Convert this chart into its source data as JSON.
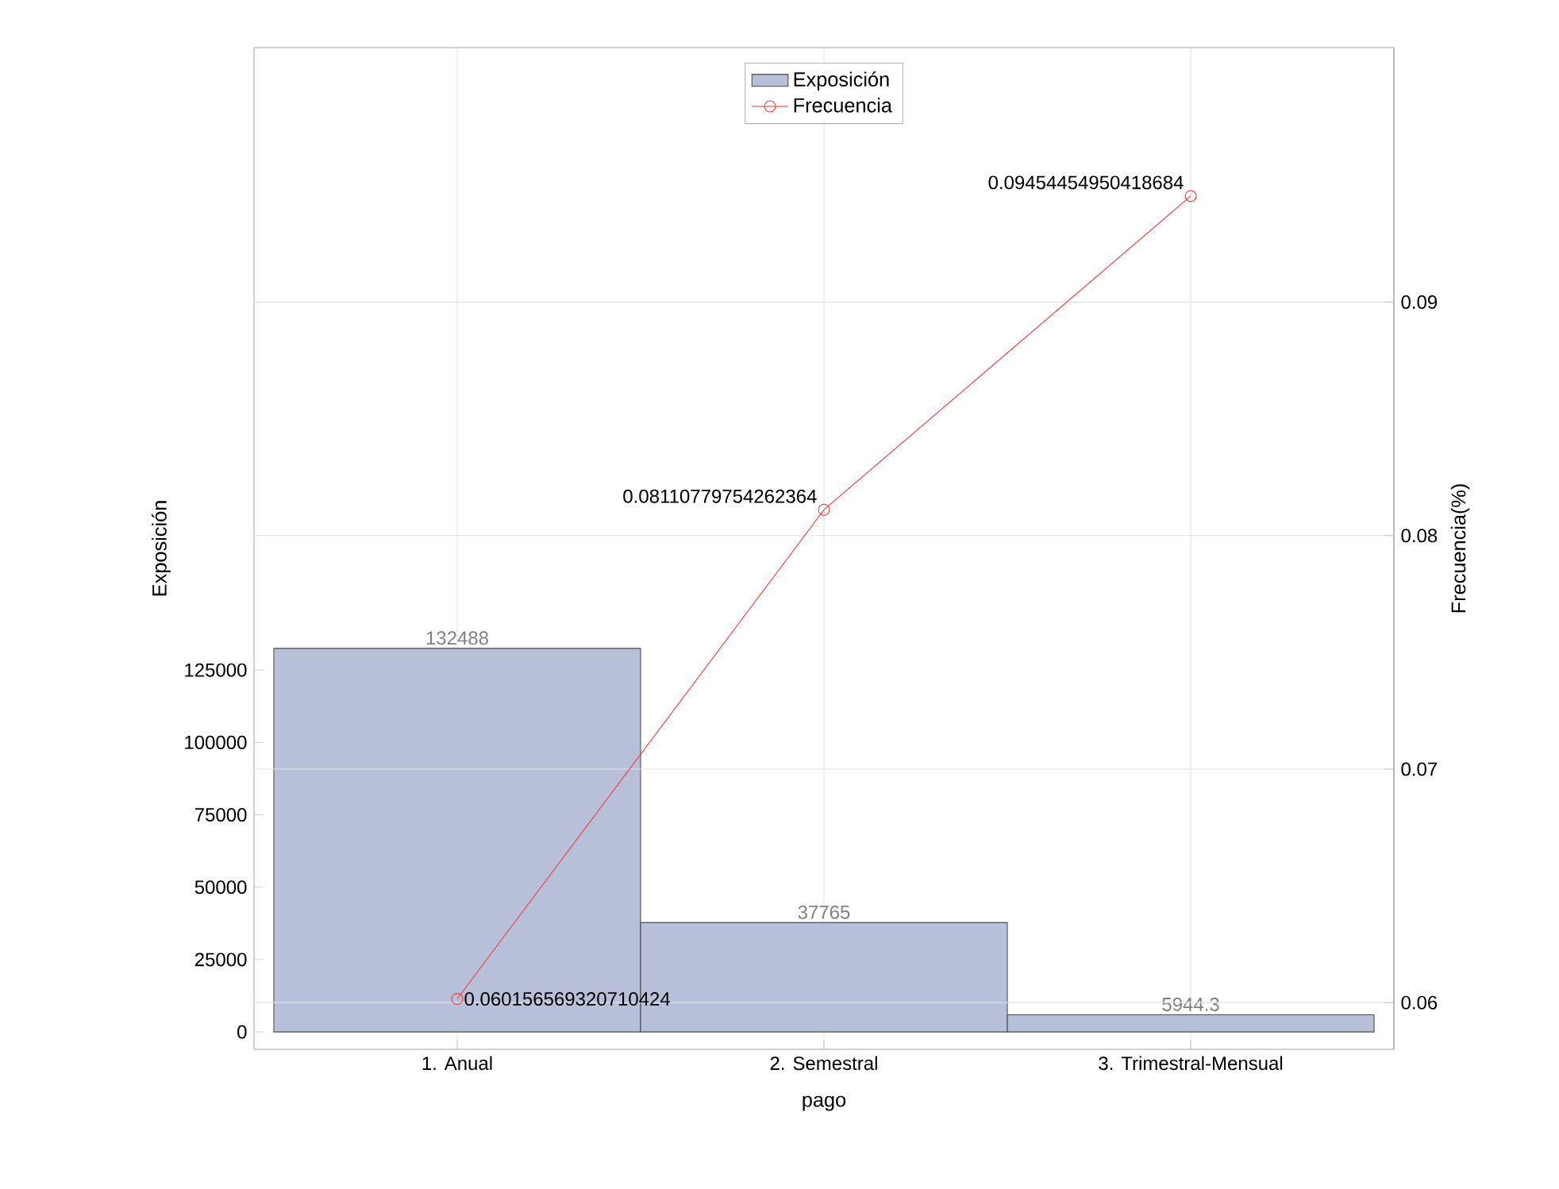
{
  "chart_data": {
    "type": "bar",
    "categories": [
      "1. Anual",
      "2. Semestral",
      "3. Trimestral-Mensual"
    ],
    "xlabel": "pago",
    "ylabel": "Exposición",
    "y2label": "Frecuencia(%)",
    "ylim": [
      -6000,
      340000
    ],
    "yticks": [
      0,
      25000,
      50000,
      75000,
      100000,
      125000
    ],
    "y2lim": [
      0.058,
      0.1009
    ],
    "y2ticks": [
      0.06,
      0.07,
      0.08,
      0.09
    ],
    "grid": true,
    "legend": "top",
    "marker": "circle",
    "series": [
      {
        "name": "Exposición",
        "color": "#b7bfd9",
        "values": [
          132488,
          37765,
          5944.3
        ],
        "value_labels": [
          "132488",
          "37765",
          "5944.3"
        ]
      },
      {
        "name": "Frecuencia",
        "type": "line",
        "axis": "y2",
        "color": "#ff3333",
        "values": [
          0.060156569320710424,
          0.08110779754262364,
          0.09454454950418684
        ],
        "value_labels": [
          "0.060156569320710424",
          "0.08110779754262364",
          "0.09454454950418684"
        ]
      }
    ]
  }
}
